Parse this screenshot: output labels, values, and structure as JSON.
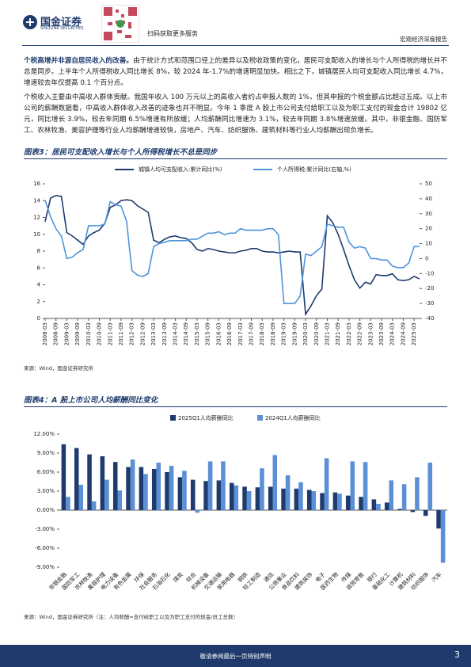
{
  "header": {
    "logo": "国金证券",
    "logo_sub": "SINOLINK SECURITIES",
    "qr_text": "扫码获取更多服务",
    "report_type": "宏观经济深度报告"
  },
  "paragraphs": [
    {
      "lead": "个税高增并非源自居民收入的改善。",
      "text": "由于统计方式和范围口径上的差异以及税收政策的变化，居民可支配收入的增长与个人所得税的增长并不总是同步。上半年个人所得税收入同比增长 8%，较 2024 年-1.7%的增速明显加快。相比之下，城镇居民人均可支配收入同比增长 4.7%，增速较去年仅提高 0.1 个百分点。"
    },
    {
      "text": "个税收入主要由中高收入群体贡献。我国年收入 100 万元以上的高收入者约占申报人数的 1%，但其申报的个税金额占比超过五成。以上市公司的薪酬数据看，中高收入群体收入改善的迹象也并不明显。今年 1 季度 A 股上市公司支付给职工以及为职工支付的现金合计 19802 亿元，同比增长 3.9%，较去年同期 6.5%增速有所放缓；人均薪酬同比增速为 3.1%，较去年同期 3.8%增速放缓。其中，非银金融、国防军工、农林牧渔、美容护理等行业人均薪酬增速较快，房地产、汽车、纺织服饰、建筑材料等行业人均薪酬出现负增长。"
    }
  ],
  "chart_data": [
    {
      "type": "line",
      "title": "图表3：居民可支配收入增长与个人所得税增长不总是同步",
      "source": "来源：Wind，国金证券研究所",
      "categories": [
        "2008-03",
        null,
        "2008-09",
        null,
        "2009-03",
        null,
        "2009-09",
        null,
        "2010-03",
        null,
        "2010-09",
        null,
        "2011-03",
        null,
        "2011-09",
        null,
        "2012-03",
        null,
        "2012-09",
        null,
        "2013-03",
        null,
        "2013-09",
        null,
        "2014-03",
        null,
        "2014-09",
        null,
        "2015-03",
        null,
        "2015-09",
        null,
        "2016-03",
        null,
        "2016-09",
        null,
        "2017-03",
        null,
        "2017-09",
        null,
        "2018-03",
        null,
        "2018-09",
        null,
        "2019-03",
        null,
        "2019-09",
        null,
        "2020-03",
        null,
        "2020-09",
        null,
        "2021-03",
        null,
        "2021-09",
        null,
        "2022-03",
        null,
        "2022-09",
        null,
        "2023-03",
        null,
        "2023-09",
        null,
        "2024-03",
        null,
        "2024-09",
        null,
        "2025-03",
        null
      ],
      "series": [
        {
          "name": "城镇人均可支配收入:累计同比(%)",
          "color": "#1f3b6e",
          "values": [
            11.5,
            14.3,
            14.6,
            14.5,
            10.2,
            9.8,
            9.3,
            8.8,
            9.8,
            10.2,
            10.5,
            11.3,
            13.2,
            13.5,
            14.0,
            14.1,
            14.0,
            13.4,
            13.0,
            12.6,
            9.3,
            9.0,
            9.4,
            9.7,
            9.8,
            9.6,
            9.5,
            9.0,
            8.2,
            8.0,
            8.3,
            8.2,
            8.0,
            7.9,
            7.8,
            7.8,
            8.0,
            8.1,
            8.3,
            8.3,
            8.0,
            7.9,
            7.9,
            7.8,
            7.9,
            8.0,
            7.9,
            7.9,
            0.5,
            1.5,
            2.7,
            3.5,
            12.2,
            11.4,
            10.0,
            8.2,
            6.3,
            4.6,
            3.6,
            4.3,
            4.1,
            5.2,
            5.1,
            5.1,
            5.3,
            4.6,
            4.5,
            4.6,
            5.0,
            4.7
          ]
        },
        {
          "name": "个人所得税:累计同比(右轴,%)",
          "color": "#4f94dc",
          "axis": "y2",
          "values": [
            39,
            28,
            20,
            15,
            0,
            1,
            4,
            6,
            22,
            22,
            22,
            23,
            38,
            36,
            35,
            25,
            -8,
            -11,
            -12,
            -10,
            8,
            10,
            11,
            12,
            12,
            12,
            12,
            13,
            13,
            15,
            17,
            17,
            18,
            16,
            17,
            17,
            20,
            19,
            19,
            19,
            19,
            20,
            20,
            16,
            -30,
            -30,
            -30,
            -25,
            3,
            2,
            5,
            8,
            23,
            22,
            21,
            21,
            11,
            7,
            8,
            7,
            0,
            0,
            -1,
            -1,
            -5,
            -6,
            -6,
            -3,
            8,
            8
          ]
        }
      ],
      "ylim": [
        0,
        16
      ],
      "yticks": [
        0,
        2,
        4,
        6,
        8,
        10,
        12,
        14,
        16
      ],
      "y2lim": [
        -40,
        50
      ],
      "y2ticks": [
        -40,
        -30,
        -20,
        -10,
        0,
        10,
        20,
        30,
        40,
        50
      ]
    },
    {
      "type": "bar",
      "title": "图表4：A 股上市公司人均薪酬同比变化",
      "source": "来源：Wind，国金证券研究所（注：人均薪酬=支付给职工以及为职工支付的现金/员工总数）",
      "categories": [
        "非银金融",
        "国防军工",
        "农林牧渔",
        "美容护理",
        "电力设备",
        "有色金属",
        "环保",
        "社会服务",
        "石油石化",
        "煤炭",
        "综合",
        "机械设备",
        "交通运输",
        "家用电器",
        "钢铁",
        "轻工制造",
        "通信",
        "公用事业",
        "食品饮料",
        "建筑装饰",
        "电子",
        "医药生物",
        "传媒",
        "商贸零售",
        "银行",
        "基础化工",
        "计算机",
        "建筑材料",
        "纺织服饰",
        "汽车"
      ],
      "series": [
        {
          "name": "2025Q1人均薪酬同比",
          "color": "#1f3b6e",
          "values": [
            10.4,
            9.8,
            8.8,
            8.5,
            7.6,
            6.8,
            6.8,
            6.5,
            6.0,
            5.2,
            4.8,
            4.6,
            4.7,
            4.3,
            3.7,
            3.6,
            3.7,
            3.4,
            3.4,
            3.2,
            2.7,
            2.8,
            2.3,
            2.1,
            1.7,
            1.2,
            0.2,
            -0.3,
            -0.9,
            -2.9
          ]
        },
        {
          "name": "2024Q1人均薪酬同比",
          "color": "#5b8fd6",
          "values": [
            2.1,
            4.0,
            1.4,
            4.8,
            3.1,
            8.0,
            5.7,
            7.5,
            7.0,
            6.2,
            -0.4,
            7.7,
            7.7,
            3.9,
            3.0,
            6.6,
            8.7,
            5.5,
            4.4,
            3.0,
            8.2,
            2.6,
            7.7,
            7.6,
            1.0,
            4.7,
            4.1,
            5.2,
            7.5,
            -8.3
          ]
        }
      ],
      "ylim": [
        -9,
        12
      ],
      "yticks": [
        {
          "value": -9,
          "label": "-9.00%"
        },
        {
          "value": -6,
          "label": "-6.00%"
        },
        {
          "value": -3,
          "label": "-3.00%"
        },
        {
          "value": 0,
          "label": "0.00%"
        },
        {
          "value": 3,
          "label": "3.00%"
        },
        {
          "value": 6,
          "label": "6.00%"
        },
        {
          "value": 9,
          "label": "9.00%"
        },
        {
          "value": 12,
          "label": "12.00%"
        }
      ]
    }
  ],
  "footer": {
    "notice": "敬请参阅最后一页特别声明",
    "page": "3"
  }
}
